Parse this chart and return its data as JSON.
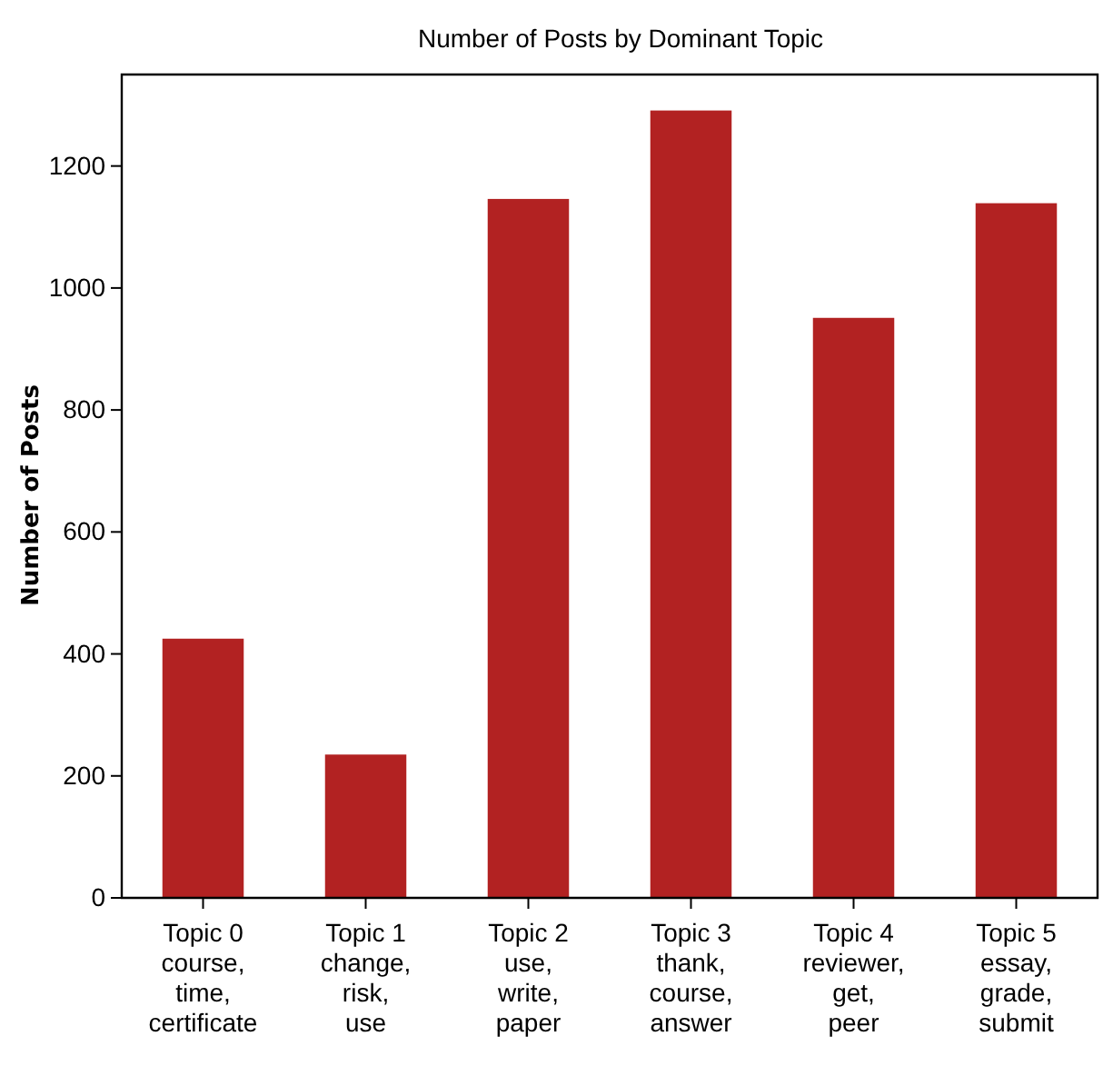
{
  "chart_data": {
    "type": "bar",
    "title": "Number of Posts by Dominant Topic",
    "ylabel": "Number of Posts",
    "categories": [
      "Topic 0\ncourse,\ntime,\ncertificate",
      "Topic 1\nchange,\nrisk,\nuse",
      "Topic 2\nuse,\nwrite,\npaper",
      "Topic 3\nthank,\ncourse,\nanswer",
      "Topic 4\nreviewer,\nget,\npeer",
      "Topic 5\nessay,\ngrade,\nsubmit"
    ],
    "values": [
      425,
      235,
      1146,
      1291,
      951,
      1139
    ],
    "color": "#b22222",
    "ylim": [
      0,
      1350
    ],
    "yticks": [
      0,
      200,
      400,
      600,
      800,
      1000,
      1200
    ],
    "grid": false
  }
}
